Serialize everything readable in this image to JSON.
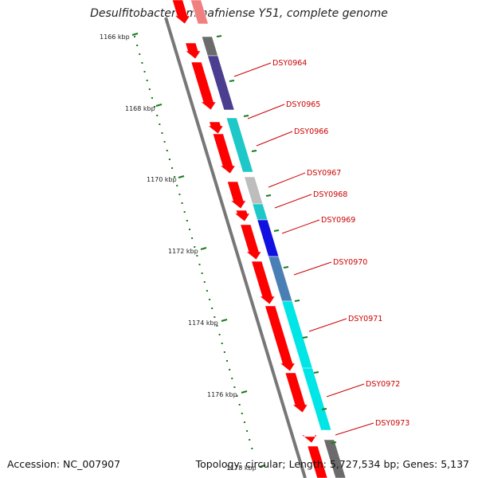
{
  "title": "Desulfitobacterium hafniense Y51, complete genome",
  "footer": {
    "accession": "Accession: NC_007907",
    "stats": "Topology: circular; Length: 5,727,534 bp; Genes: 5,137"
  },
  "kbp_labels": [
    "1166 kbp",
    "1168 kbp",
    "1170 kbp",
    "1172 kbp",
    "1174 kbp",
    "1176 kbp",
    "1178 kbp"
  ],
  "gene_labels": [
    "DSY0964",
    "DSY0965",
    "DSY0966",
    "DSY0967",
    "DSY0968",
    "DSY0969",
    "DSY0970",
    "DSY0971",
    "DSY0972",
    "DSY0973"
  ],
  "colors": {
    "gene_red": "#ff0000",
    "tick_green": "#1a7a1a",
    "label_red": "#cc0000",
    "backbone": "#777777"
  }
}
